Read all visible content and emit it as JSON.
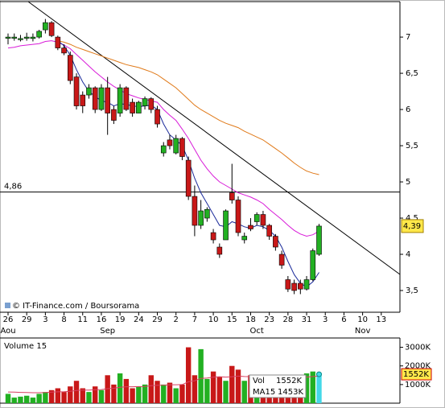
{
  "chart_data": [
    {
      "type": "candlestick",
      "categories": [
        "26",
        null,
        null,
        "29",
        null,
        null,
        "3",
        null,
        null,
        "8",
        null,
        null,
        "11",
        null,
        null,
        "16",
        null,
        null,
        "19",
        null,
        null,
        "24",
        null,
        null,
        "29",
        null,
        null,
        "2",
        null,
        null,
        "7",
        null,
        null,
        "10",
        null,
        null,
        "15",
        null,
        null,
        "18",
        null,
        null,
        "23",
        null,
        null,
        "28",
        null,
        null,
        "31",
        null,
        null,
        "3",
        null,
        null,
        "6",
        null,
        null,
        "10",
        null,
        null,
        "13"
      ],
      "month_categories": [
        "Aou",
        null,
        null,
        null,
        null,
        null,
        null,
        null,
        null,
        null,
        null,
        null,
        null,
        null,
        null,
        null,
        "Sep",
        null,
        null,
        null,
        null,
        null,
        null,
        null,
        null,
        null,
        null,
        null,
        null,
        null,
        null,
        null,
        null,
        null,
        null,
        null,
        null,
        null,
        null,
        null,
        "Oct",
        null,
        null,
        null,
        null,
        null,
        null,
        null,
        null,
        null,
        null,
        null,
        null,
        null,
        null,
        null,
        null,
        "Nov",
        null,
        null,
        null
      ],
      "open": [
        7.0,
        7.0,
        6.98,
        7.0,
        6.98,
        7.0,
        7.1,
        7.2,
        7.0,
        6.85,
        6.75,
        6.45,
        6.2,
        6.2,
        6.3,
        6.0,
        6.3,
        6.0,
        5.95,
        6.3,
        6.1,
        5.95,
        6.05,
        6.15,
        6.0,
        5.4,
        5.58,
        5.4,
        5.6,
        5.3,
        4.8,
        4.4,
        4.5,
        4.3,
        4.1,
        4.2,
        4.85,
        4.75,
        4.2,
        4.4,
        4.45,
        4.55,
        4.4,
        4.25,
        4.0,
        3.65,
        3.6,
        3.6,
        3.52,
        3.65,
        4.0,
        null,
        null,
        null,
        null,
        null,
        null,
        null,
        null,
        null,
        null
      ],
      "high": [
        7.05,
        7.05,
        7.03,
        7.06,
        7.05,
        7.1,
        7.25,
        7.22,
        7.02,
        6.9,
        6.8,
        6.5,
        6.25,
        6.35,
        6.32,
        6.35,
        6.45,
        6.05,
        6.35,
        6.32,
        6.15,
        6.12,
        6.18,
        6.17,
        6.05,
        5.55,
        5.65,
        5.65,
        5.62,
        5.35,
        4.95,
        4.75,
        4.65,
        4.35,
        4.15,
        4.62,
        5.25,
        4.8,
        4.3,
        4.5,
        4.58,
        4.6,
        4.42,
        4.28,
        4.05,
        3.7,
        3.65,
        3.65,
        3.7,
        4.08,
        4.42,
        null,
        null,
        null,
        null,
        null,
        null,
        null,
        null,
        null,
        null
      ],
      "low": [
        6.9,
        6.95,
        6.94,
        6.95,
        6.94,
        6.98,
        7.05,
        7.0,
        6.82,
        6.75,
        6.35,
        6.0,
        5.95,
        6.15,
        5.95,
        5.98,
        5.65,
        5.8,
        5.9,
        5.98,
        5.9,
        5.95,
        6.0,
        5.95,
        5.75,
        5.35,
        5.45,
        5.38,
        5.3,
        4.75,
        4.25,
        4.35,
        4.45,
        4.15,
        3.95,
        4.2,
        4.7,
        4.25,
        4.15,
        4.32,
        4.4,
        4.35,
        4.2,
        4.05,
        3.8,
        3.48,
        3.45,
        3.45,
        3.5,
        3.63,
        3.98,
        null,
        null,
        null,
        null,
        null,
        null,
        null,
        null,
        null,
        null
      ],
      "close": [
        7.0,
        7.0,
        6.98,
        7.0,
        7.0,
        7.08,
        7.2,
        7.02,
        6.85,
        6.78,
        6.4,
        6.05,
        6.05,
        6.3,
        6.0,
        6.3,
        5.95,
        5.85,
        6.3,
        6.0,
        5.95,
        6.1,
        6.15,
        6.0,
        5.8,
        5.5,
        5.5,
        5.6,
        5.35,
        4.8,
        4.4,
        4.6,
        4.62,
        4.2,
        4.0,
        4.6,
        4.75,
        4.3,
        4.25,
        4.35,
        4.55,
        4.4,
        4.25,
        4.1,
        3.85,
        3.52,
        3.5,
        3.52,
        3.65,
        4.05,
        4.39,
        null,
        null,
        null,
        null,
        null,
        null,
        null,
        null,
        null,
        null
      ],
      "up_color": "#22b022",
      "down_color": "#c81818",
      "series": [
        {
          "color": "#d81bd8",
          "values": [
            6.85,
            6.86,
            6.88,
            6.89,
            6.9,
            6.91,
            6.94,
            6.95,
            6.93,
            6.89,
            6.84,
            6.76,
            6.68,
            6.6,
            6.52,
            6.45,
            6.38,
            6.32,
            6.27,
            6.22,
            6.19,
            6.16,
            6.14,
            6.12,
            6.1,
            6.0,
            5.92,
            5.85,
            5.73,
            5.6,
            5.45,
            5.3,
            5.18,
            5.08,
            5.0,
            4.95,
            4.9,
            4.85,
            4.82,
            4.79,
            4.75,
            4.7,
            4.62,
            4.55,
            4.48,
            4.4,
            4.33,
            4.28,
            4.25,
            4.27,
            4.32,
            null,
            null,
            null,
            null,
            null,
            null,
            null,
            null,
            null,
            null
          ]
        },
        {
          "color": "#e07a1a",
          "values": [
            null,
            null,
            null,
            null,
            null,
            null,
            null,
            null,
            6.95,
            6.93,
            6.9,
            6.86,
            6.83,
            6.8,
            6.77,
            6.74,
            6.71,
            6.68,
            6.65,
            6.62,
            6.6,
            6.58,
            6.55,
            6.52,
            6.48,
            6.42,
            6.36,
            6.3,
            6.22,
            6.14,
            6.06,
            6.0,
            5.95,
            5.9,
            5.85,
            5.81,
            5.78,
            5.75,
            5.7,
            5.66,
            5.62,
            5.58,
            5.52,
            5.46,
            5.4,
            5.33,
            5.26,
            5.2,
            5.15,
            5.12,
            5.1,
            null,
            null,
            null,
            null,
            null,
            null,
            null,
            null,
            null,
            null
          ]
        },
        {
          "color": "#1a2a9a",
          "values": [
            null,
            null,
            null,
            null,
            null,
            null,
            null,
            null,
            6.95,
            6.88,
            6.75,
            6.55,
            6.38,
            6.25,
            6.18,
            6.12,
            6.1,
            6.05,
            6.08,
            6.07,
            6.05,
            6.04,
            6.05,
            6.06,
            6.0,
            5.8,
            5.65,
            5.58,
            5.5,
            5.3,
            5.05,
            4.85,
            4.7,
            4.55,
            4.4,
            4.38,
            4.45,
            4.42,
            4.38,
            4.36,
            4.4,
            4.38,
            4.33,
            4.25,
            4.1,
            3.9,
            3.72,
            3.6,
            3.55,
            3.62,
            3.75,
            null,
            null,
            null,
            null,
            null,
            null,
            null,
            null,
            null,
            null
          ]
        }
      ],
      "ylim": [
        3.2,
        7.49
      ],
      "yticks": [
        {
          "value": 3.5,
          "label": "3,5"
        },
        4,
        {
          "value": 4.5,
          "label": "4,5"
        },
        5,
        {
          "value": 5.5,
          "label": "5,5"
        },
        6,
        {
          "value": 6.5,
          "label": "6,5"
        },
        7
      ],
      "reference_line": {
        "value": 4.86,
        "label": "4,86"
      },
      "last_price": {
        "value": 4.39,
        "label": "4,39"
      },
      "watermark": "© IT-Finance.com / Boursorama"
    },
    {
      "type": "bar",
      "title": "Volume 15",
      "highlight_color": "#44d8e8",
      "series": [
        {
          "name": "Vol",
          "values": [
            500000,
            300000,
            350000,
            400000,
            300000,
            500000,
            600000,
            700000,
            800000,
            600000,
            900000,
            1200000,
            800000,
            600000,
            900000,
            700000,
            1500000,
            1000000,
            1600000,
            1300000,
            800000,
            900000,
            1000000,
            1500000,
            1200000,
            1000000,
            1100000,
            800000,
            1000000,
            3000000,
            1500000,
            2900000,
            1300000,
            1700000,
            1400000,
            1200000,
            2000000,
            1800000,
            1200000,
            1500000,
            1300000,
            1400000,
            1300000,
            1100000,
            1000000,
            900000,
            1000000,
            1400000,
            1600000,
            1700000,
            1552000,
            null,
            null,
            null,
            null,
            null,
            null,
            null,
            null,
            null,
            null
          ],
          "value_labels": [
            null,
            null,
            null,
            null,
            null,
            null,
            null,
            null,
            null,
            null,
            null,
            null,
            null,
            null,
            null,
            null,
            null,
            null,
            null,
            null,
            null,
            null,
            null,
            null,
            null,
            null,
            null,
            null,
            null,
            null,
            null,
            null,
            null,
            null,
            null,
            null,
            null,
            null,
            null,
            null,
            null,
            null,
            null,
            null,
            null,
            null,
            null,
            null,
            null,
            null,
            "1552K",
            null,
            null,
            null,
            null,
            null,
            null,
            null,
            null,
            null,
            null
          ]
        },
        {
          "name": "MA15",
          "color": "#d84060",
          "values": [
            600000,
            590000,
            580000,
            570000,
            560000,
            560000,
            570000,
            590000,
            610000,
            620000,
            640000,
            680000,
            700000,
            700000,
            720000,
            730000,
            780000,
            800000,
            850000,
            880000,
            880000,
            890000,
            900000,
            940000,
            960000,
            970000,
            990000,
            990000,
            1000000,
            1150000,
            1200000,
            1330000,
            1350000,
            1400000,
            1420000,
            1400000,
            1420000,
            1450000,
            1430000,
            1420000,
            1400000,
            1410000,
            1400000,
            1380000,
            1370000,
            1350000,
            1360000,
            1380000,
            1400000,
            1430000,
            1453000,
            null,
            null,
            null,
            null,
            null,
            null,
            null,
            null,
            null,
            null
          ],
          "value_labels": [
            null,
            null,
            null,
            null,
            null,
            null,
            null,
            null,
            null,
            null,
            null,
            null,
            null,
            null,
            null,
            null,
            null,
            null,
            null,
            null,
            null,
            null,
            null,
            null,
            null,
            null,
            null,
            null,
            null,
            null,
            null,
            null,
            null,
            null,
            null,
            null,
            null,
            null,
            null,
            null,
            null,
            null,
            null,
            null,
            null,
            null,
            null,
            null,
            null,
            null,
            "1453K",
            null,
            null,
            null,
            null,
            null,
            null,
            null,
            null,
            null,
            null
          ]
        }
      ],
      "ylim": [
        0,
        3500000
      ],
      "yticks": [
        {
          "value": 1000000,
          "label": "1000K"
        },
        {
          "value": 2000000,
          "label": "2000K"
        },
        {
          "value": 3000000,
          "label": "3000K"
        }
      ]
    }
  ]
}
